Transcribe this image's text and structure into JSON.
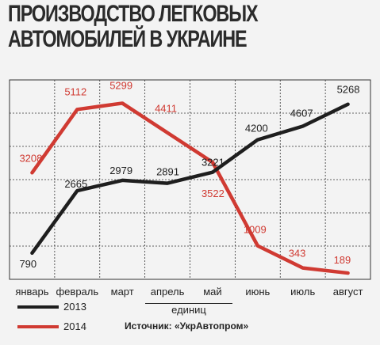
{
  "title_line1": "ПРОИЗВОДСТВО ЛЕГКОВЫХ",
  "title_line2": "АВТОМОБИЛЕЙ В УКРАИНЕ",
  "units_label": "единиц",
  "source": "Источник: «УкрАвтопром»",
  "colors": {
    "series_2013": "#1e1e1e",
    "series_2014": "#d03a32",
    "grid": "#333333",
    "background": "#f3f3f3"
  },
  "chart_data": {
    "type": "line",
    "categories": [
      "январь",
      "февраль",
      "март",
      "апрель",
      "май",
      "июнь",
      "июль",
      "август"
    ],
    "series": [
      {
        "name": "2013",
        "values": [
          790,
          2665,
          2979,
          2891,
          3221,
          4200,
          4607,
          5268
        ]
      },
      {
        "name": "2014",
        "values": [
          3208,
          5112,
          5299,
          4411,
          3522,
          1009,
          343,
          189
        ]
      }
    ],
    "ylim": [
      0,
      6000
    ],
    "grid": true,
    "legend_position": "bottom-left",
    "data_labels": true
  }
}
